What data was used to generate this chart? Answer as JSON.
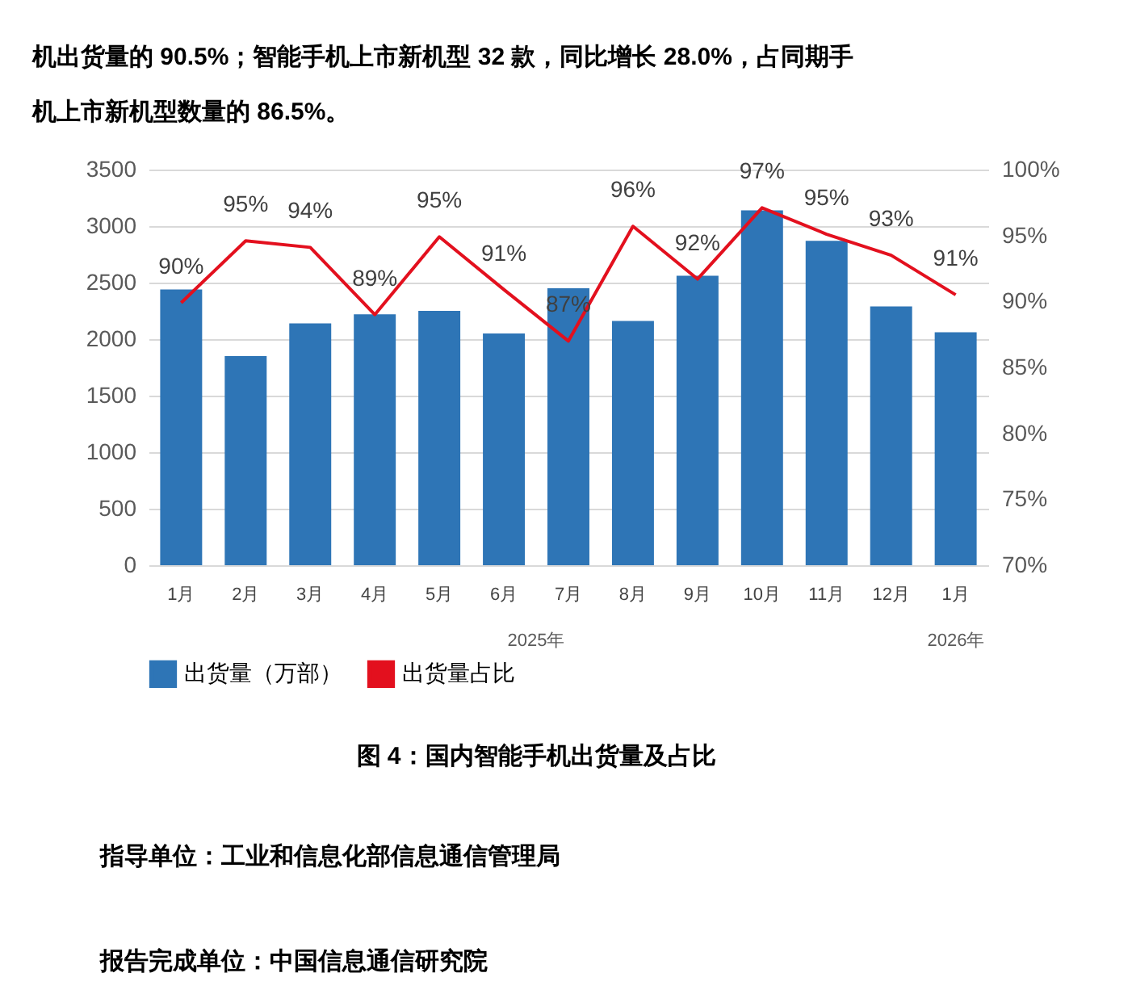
{
  "chart_data": {
    "type": "bar",
    "title": "图 4：国内智能手机出货量及占比",
    "categories": [
      "1月",
      "2月",
      "3月",
      "4月",
      "5月",
      "6月",
      "7月",
      "8月",
      "9月",
      "10月",
      "11月",
      "12月",
      "1月"
    ],
    "series": [
      {
        "name": "出货量（万部）",
        "color": "#2e75b6",
        "values": [
          2440,
          1850,
          2140,
          2220,
          2250,
          2050,
          2450,
          2160,
          2560,
          3140,
          2870,
          2290,
          2060
        ]
      },
      {
        "name": "出货量占比",
        "type": "line",
        "axis": "y2",
        "color": "#e3101e",
        "values": [
          89.9,
          94.6,
          94.1,
          89.0,
          94.9,
          90.9,
          87.0,
          95.7,
          91.7,
          97.1,
          95.1,
          93.5,
          90.5
        ],
        "value_labels": [
          "90%",
          "95%",
          "94%",
          "89%",
          "95%",
          "91%",
          "87%",
          "96%",
          "92%",
          "97%",
          "95%",
          "93%",
          "91%"
        ]
      }
    ],
    "ylim": [
      0,
      3500
    ],
    "yticks": [
      0,
      500,
      1000,
      1500,
      2000,
      2500,
      3000,
      3500
    ],
    "y2lim": [
      70,
      100
    ],
    "y2ticks": [
      {
        "value": 70,
        "label": "70%"
      },
      {
        "value": 75,
        "label": "75%"
      },
      {
        "value": 80,
        "label": "80%"
      },
      {
        "value": 85,
        "label": "85%"
      },
      {
        "value": 90,
        "label": "90%"
      },
      {
        "value": 95,
        "label": "95%"
      },
      {
        "value": 100,
        "label": "100%"
      }
    ],
    "grid": "y",
    "legend": "bottom",
    "marker": "none",
    "line_style": "solid",
    "annotations": [
      "2025年",
      "2026年",
      "机出货量的 90.5%；智能手机上市新机型 32 款，同比增长 28.0%，占同期手",
      "机上市新机型数量的 86.5%。",
      "指导单位：工业和信息化部信息通信管理局",
      "报告完成单位：中国信息通信研究院"
    ]
  }
}
